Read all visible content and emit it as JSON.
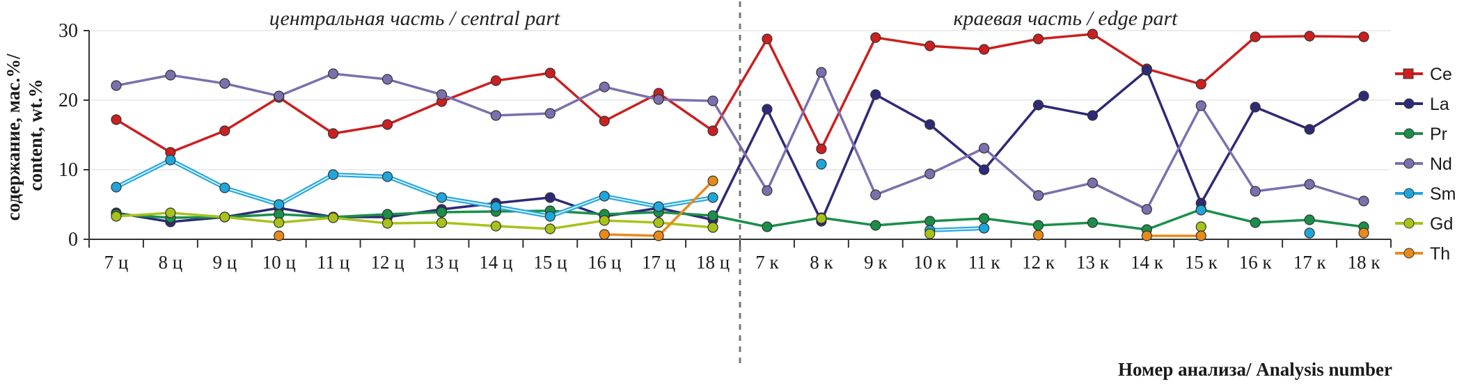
{
  "chart_data": {
    "type": "line",
    "regions": [
      {
        "label": "центральная часть / central part",
        "from_index": 0,
        "to_index": 11
      },
      {
        "label": "краевая часть / edge part",
        "from_index": 12,
        "to_index": 23
      }
    ],
    "categories": [
      "7 ц",
      "8 ц",
      "9 ц",
      "10 ц",
      "11 ц",
      "12 ц",
      "13 ц",
      "14 ц",
      "15 ц",
      "16 ц",
      "17 ц",
      "18 ц",
      "7 к",
      "8 к",
      "9 к",
      "10 к",
      "11 к",
      "12 к",
      "13 к",
      "14 к",
      "15 к",
      "16 к",
      "17 к",
      "18 к"
    ],
    "xlabel": "Номер анализа/ Analysis number",
    "ylabel": "содержание, мас.%/ content, wt.%",
    "ylabel_lines": [
      "содержание, мас.%/",
      "content, wt.%"
    ],
    "ylim": [
      0,
      30
    ],
    "yticks": [
      0,
      10,
      20,
      30
    ],
    "grid": true,
    "legend_position": "right",
    "series": [
      {
        "name": "Ce",
        "color": "#cc1f1f",
        "marker": "square",
        "values": [
          17.2,
          12.5,
          15.6,
          20.4,
          15.2,
          16.5,
          19.8,
          22.8,
          23.9,
          17.0,
          21.0,
          15.6,
          28.8,
          13.0,
          29.0,
          27.8,
          27.3,
          28.8,
          29.5,
          24.5,
          22.3,
          29.1,
          29.2,
          29.1
        ]
      },
      {
        "name": "La",
        "color": "#2e2a78",
        "marker": "circle",
        "values": [
          3.8,
          2.5,
          3.2,
          4.5,
          3.2,
          3.2,
          4.3,
          5.2,
          6.0,
          3.3,
          4.5,
          2.8,
          18.7,
          2.6,
          20.8,
          16.5,
          10.0,
          19.3,
          17.8,
          24.3,
          5.2,
          19.0,
          15.8,
          20.6
        ]
      },
      {
        "name": "Pr",
        "color": "#1a8f4a",
        "marker": "circle",
        "values": [
          3.6,
          3.1,
          3.2,
          3.6,
          3.2,
          3.6,
          3.9,
          4.0,
          4.1,
          3.6,
          3.9,
          3.4,
          1.8,
          3.1,
          2.0,
          2.6,
          3.0,
          2.0,
          2.4,
          1.4,
          4.3,
          2.4,
          2.8,
          1.8
        ]
      },
      {
        "name": "Nd",
        "color": "#7c6fae",
        "marker": "circle",
        "values": [
          22.1,
          23.6,
          22.4,
          20.6,
          23.8,
          23.0,
          20.8,
          17.8,
          18.1,
          21.9,
          20.1,
          19.9,
          7.0,
          24.0,
          6.4,
          9.4,
          13.1,
          6.3,
          8.1,
          4.3,
          19.2,
          6.9,
          7.9,
          5.5
        ]
      },
      {
        "name": "Sm",
        "color": "#1ea6dc",
        "marker": "circle",
        "values": [
          7.5,
          11.4,
          7.4,
          5.0,
          9.3,
          9.0,
          6.0,
          4.7,
          3.3,
          6.2,
          4.7,
          6.0,
          null,
          10.8,
          null,
          1.3,
          1.6,
          null,
          null,
          null,
          4.2,
          null,
          0.9,
          null
        ]
      },
      {
        "name": "Gd",
        "color": "#a8c21a",
        "marker": "circle",
        "values": [
          3.3,
          3.8,
          3.2,
          2.4,
          3.1,
          2.3,
          2.4,
          1.9,
          1.5,
          2.7,
          2.4,
          1.7,
          null,
          3.0,
          null,
          0.8,
          null,
          null,
          null,
          null,
          1.8,
          null,
          null,
          null
        ]
      },
      {
        "name": "Th",
        "color": "#e88a1a",
        "marker": "circle",
        "values": [
          null,
          null,
          null,
          0.5,
          null,
          null,
          null,
          null,
          null,
          0.7,
          0.5,
          8.4,
          null,
          null,
          null,
          null,
          null,
          0.6,
          null,
          0.5,
          0.5,
          null,
          null,
          0.9
        ]
      }
    ]
  }
}
